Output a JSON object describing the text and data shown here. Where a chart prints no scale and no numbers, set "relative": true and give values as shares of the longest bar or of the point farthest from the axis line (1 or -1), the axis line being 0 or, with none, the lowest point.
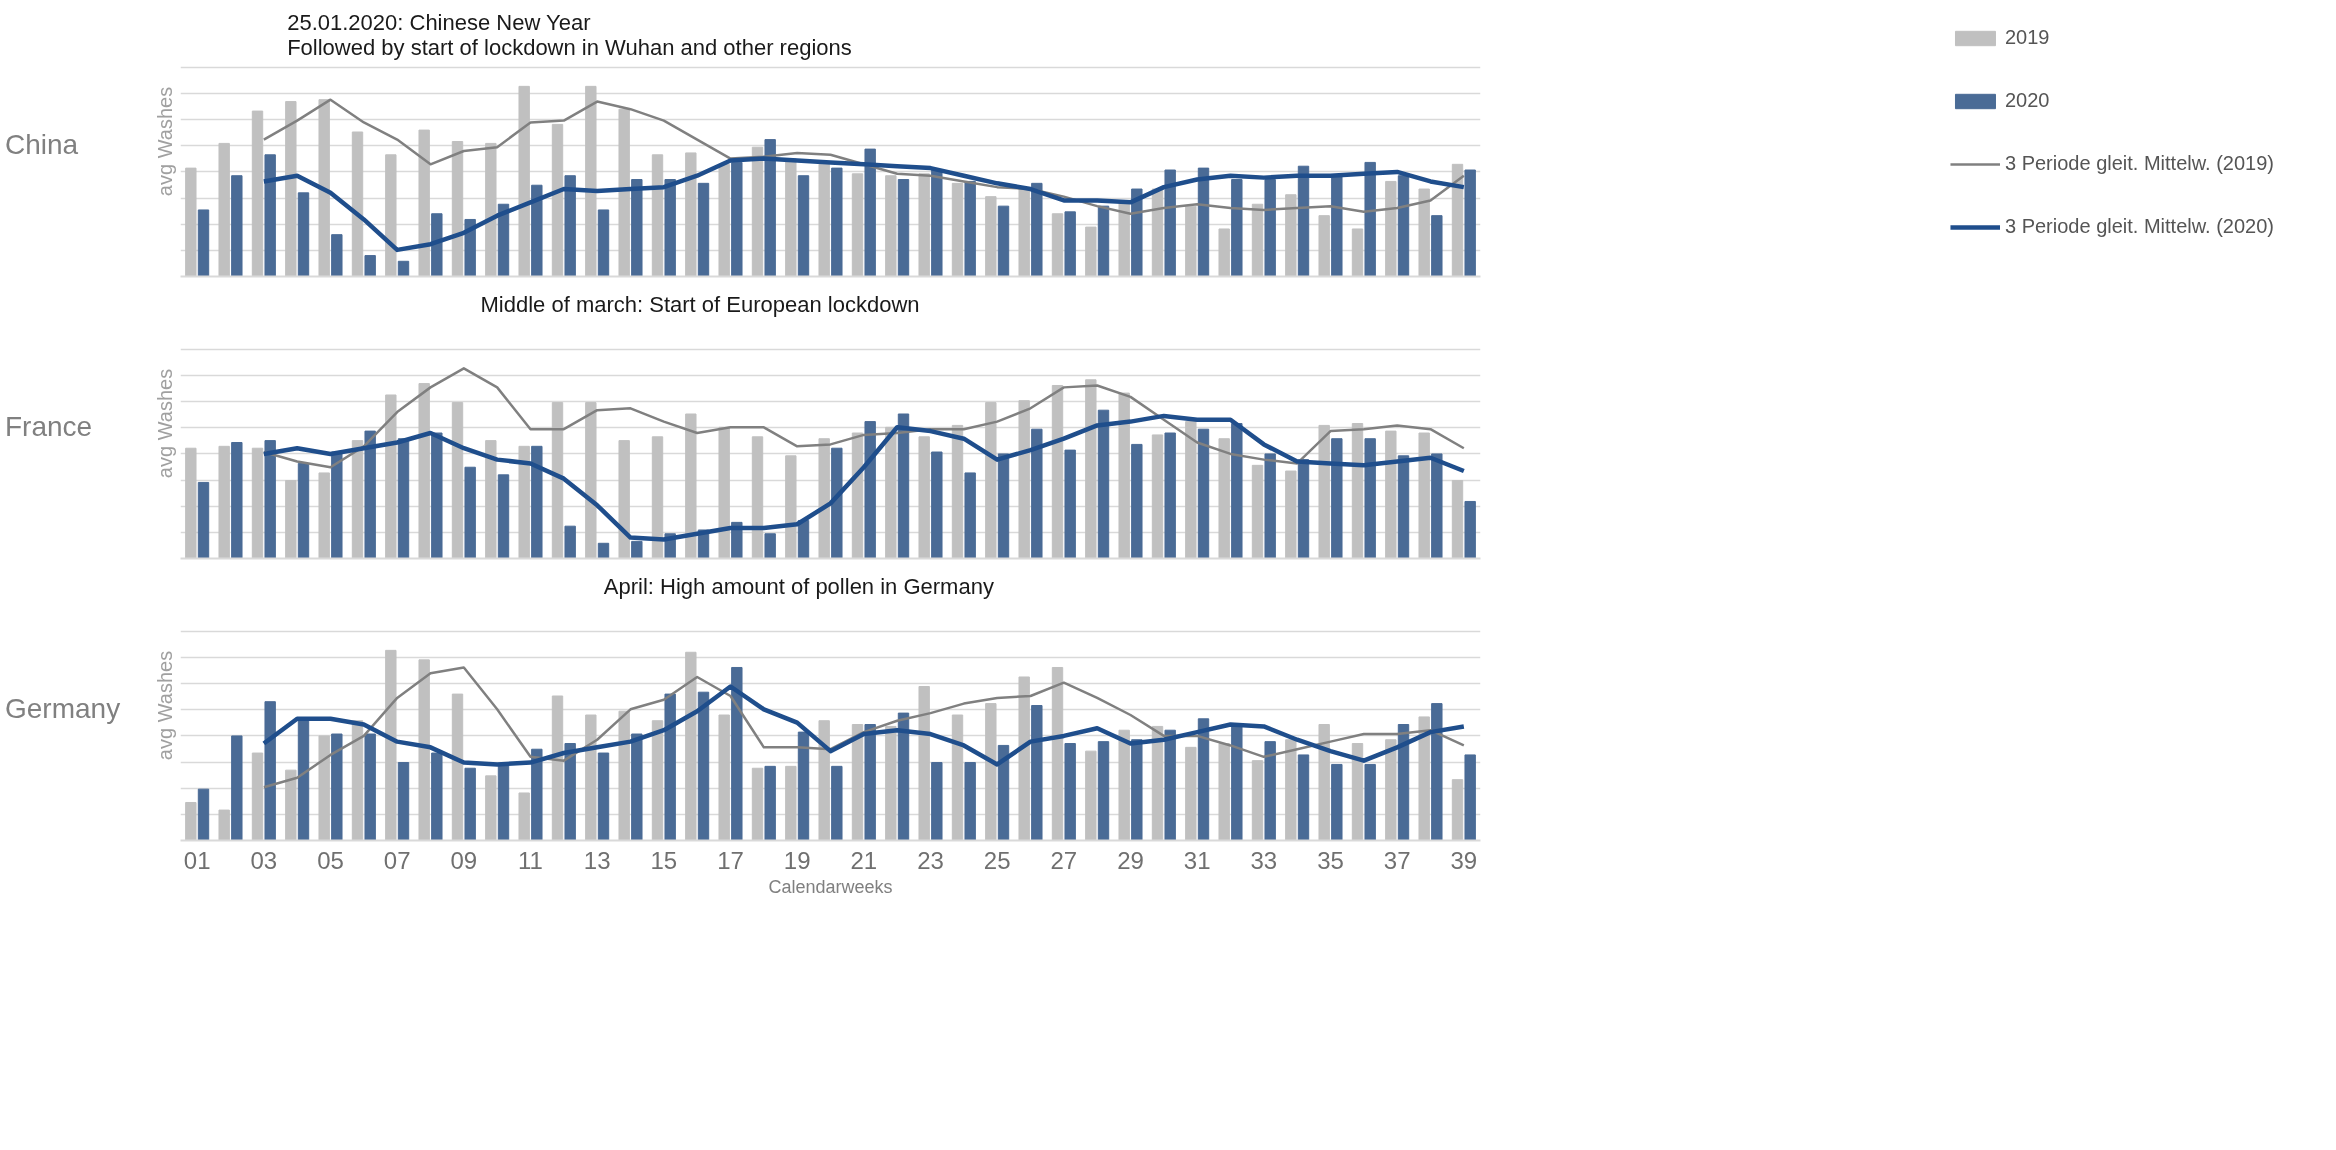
{
  "chart_data": [
    {
      "type": "bar",
      "title": "China",
      "ylabel": "avg Washes",
      "relative": true,
      "grid": "y",
      "legend": "right",
      "tick_labels": false,
      "xlim": [
        0.5,
        39.5
      ],
      "x": [
        1,
        2,
        3,
        4,
        5,
        6,
        7,
        8,
        9,
        10,
        11,
        12,
        13,
        14,
        15,
        16,
        17,
        18,
        19,
        20,
        21,
        22,
        23,
        24,
        25,
        26,
        27,
        28,
        29,
        30,
        31,
        32,
        33,
        34,
        35,
        36,
        37,
        38,
        39
      ],
      "annotations": [
        "25.01.2020: Chinese New Year",
        "Followed by start of lockdown in Wuhan and other regions"
      ],
      "series": [
        {
          "name": "2019",
          "color": "#c0c0c0",
          "values": [
            0.57,
            0.7,
            0.87,
            0.92,
            0.93,
            0.76,
            0.64,
            0.77,
            0.71,
            0.7,
            1.0,
            0.8,
            1.0,
            0.88,
            0.64,
            0.65,
            0.59,
            0.68,
            0.62,
            0.59,
            0.54,
            0.53,
            0.54,
            0.49,
            0.42,
            0.46,
            0.33,
            0.26,
            0.39,
            0.46,
            0.37,
            0.25,
            0.38,
            0.43,
            0.32,
            0.25,
            0.5,
            0.46,
            0.59
          ]
        },
        {
          "name": "2020",
          "color": "#4a6b96",
          "values": [
            0.35,
            0.53,
            0.64,
            0.44,
            0.22,
            0.11,
            0.08,
            0.33,
            0.3,
            0.38,
            0.48,
            0.53,
            0.35,
            0.51,
            0.51,
            0.49,
            0.6,
            0.72,
            0.53,
            0.57,
            0.67,
            0.51,
            0.56,
            0.5,
            0.37,
            0.49,
            0.34,
            0.37,
            0.46,
            0.56,
            0.57,
            0.51,
            0.51,
            0.58,
            0.53,
            0.6,
            0.53,
            0.32,
            0.56
          ]
        },
        {
          "name": "3 Periode gleit. Mittelw. (2019)",
          "type": "line",
          "color": "#808080",
          "values": [
            null,
            null,
            0.72,
            0.82,
            0.93,
            0.81,
            0.72,
            0.59,
            0.66,
            0.68,
            0.81,
            0.82,
            0.92,
            0.88,
            0.82,
            0.72,
            0.62,
            0.63,
            0.65,
            0.64,
            0.59,
            0.54,
            0.53,
            0.5,
            0.47,
            0.46,
            0.42,
            0.37,
            0.33,
            0.36,
            0.38,
            0.36,
            0.35,
            0.36,
            0.37,
            0.34,
            0.36,
            0.4,
            0.53
          ]
        },
        {
          "name": "3 Periode gleit. Mittelw. (2020)",
          "type": "line",
          "color": "#1f4e8c",
          "values": [
            null,
            null,
            0.5,
            0.53,
            0.44,
            0.3,
            0.14,
            0.17,
            0.23,
            0.32,
            0.39,
            0.46,
            0.45,
            0.46,
            0.47,
            0.53,
            0.61,
            0.62,
            0.61,
            0.6,
            0.59,
            0.58,
            0.57,
            0.53,
            0.49,
            0.46,
            0.4,
            0.4,
            0.39,
            0.47,
            0.51,
            0.53,
            0.52,
            0.53,
            0.53,
            0.54,
            0.55,
            0.5,
            0.47
          ]
        }
      ]
    },
    {
      "type": "bar",
      "title": "France",
      "ylabel": "avg Washes",
      "relative": true,
      "grid": "y",
      "tick_labels": false,
      "xlim": [
        0.5,
        39.5
      ],
      "x": [
        1,
        2,
        3,
        4,
        5,
        6,
        7,
        8,
        9,
        10,
        11,
        12,
        13,
        14,
        15,
        16,
        17,
        18,
        19,
        20,
        21,
        22,
        23,
        24,
        25,
        26,
        27,
        28,
        29,
        30,
        31,
        32,
        33,
        34,
        35,
        36,
        37,
        38,
        39
      ],
      "annotations": [
        "Middle of march: Start of European lockdown"
      ],
      "series": [
        {
          "color": "#c0c0c0",
          "values": [
            0.58,
            0.59,
            0.58,
            0.41,
            0.45,
            0.62,
            0.86,
            0.92,
            0.82,
            0.62,
            0.59,
            0.82,
            0.82,
            0.62,
            0.64,
            0.76,
            0.69,
            0.64,
            0.54,
            0.63,
            0.66,
            0.69,
            0.64,
            0.7,
            0.82,
            0.83,
            0.91,
            0.94,
            0.87,
            0.65,
            0.72,
            0.63,
            0.49,
            0.46,
            0.7,
            0.71,
            0.67,
            0.66,
            0.41
          ]
        },
        {
          "color": "#4a6b96",
          "values": [
            0.4,
            0.61,
            0.62,
            0.5,
            0.56,
            0.67,
            0.63,
            0.66,
            0.48,
            0.44,
            0.59,
            0.17,
            0.08,
            0.09,
            0.13,
            0.15,
            0.19,
            0.13,
            0.2,
            0.58,
            0.72,
            0.76,
            0.56,
            0.45,
            0.55,
            0.68,
            0.57,
            0.78,
            0.6,
            0.66,
            0.68,
            0.71,
            0.55,
            0.52,
            0.63,
            0.63,
            0.54,
            0.55,
            0.3
          ]
        },
        {
          "type": "line",
          "color": "#808080",
          "values": [
            null,
            null,
            0.56,
            0.51,
            0.48,
            0.59,
            0.77,
            0.9,
            1.0,
            0.9,
            0.68,
            0.68,
            0.78,
            0.79,
            0.72,
            0.66,
            0.69,
            0.69,
            0.59,
            0.6,
            0.65,
            0.66,
            0.68,
            0.68,
            0.72,
            0.79,
            0.9,
            0.91,
            0.85,
            0.73,
            0.61,
            0.55,
            0.52,
            0.5,
            0.67,
            0.68,
            0.7,
            0.68,
            0.58
          ]
        },
        {
          "type": "line",
          "color": "#1f4e8c",
          "values": [
            null,
            null,
            0.55,
            0.58,
            0.55,
            0.58,
            0.61,
            0.66,
            0.58,
            0.52,
            0.5,
            0.42,
            0.28,
            0.11,
            0.1,
            0.13,
            0.16,
            0.16,
            0.18,
            0.29,
            0.48,
            0.69,
            0.67,
            0.63,
            0.52,
            0.57,
            0.63,
            0.7,
            0.72,
            0.75,
            0.73,
            0.73,
            0.6,
            0.51,
            0.5,
            0.49,
            0.51,
            0.53,
            0.46
          ]
        }
      ]
    },
    {
      "type": "bar",
      "title": "Germany",
      "ylabel": "avg Washes",
      "xlabel": "Calendarweeks",
      "relative": true,
      "grid": "y",
      "tick_labels": "x",
      "xlim": [
        0.5,
        39.5
      ],
      "xticks": [
        {
          "value": 1,
          "label": "01"
        },
        {
          "value": 3,
          "label": "03"
        },
        {
          "value": 5,
          "label": "05"
        },
        {
          "value": 7,
          "label": "07"
        },
        {
          "value": 9,
          "label": "09"
        },
        11,
        13,
        15,
        17,
        19,
        21,
        23,
        25,
        27,
        29,
        31,
        33,
        35,
        37,
        39
      ],
      "x": [
        1,
        2,
        3,
        4,
        5,
        6,
        7,
        8,
        9,
        10,
        11,
        12,
        13,
        14,
        15,
        16,
        17,
        18,
        19,
        20,
        21,
        22,
        23,
        24,
        25,
        26,
        27,
        28,
        29,
        30,
        31,
        32,
        33,
        34,
        35,
        36,
        37,
        38,
        39
      ],
      "annotations": [
        "April: High amount of pollen in Germany"
      ],
      "series": [
        {
          "color": "#c0c0c0",
          "values": [
            0.2,
            0.16,
            0.46,
            0.37,
            0.55,
            0.63,
            1.0,
            0.95,
            0.77,
            0.34,
            0.25,
            0.76,
            0.66,
            0.68,
            0.63,
            0.99,
            0.66,
            0.38,
            0.39,
            0.63,
            0.61,
            0.6,
            0.81,
            0.66,
            0.72,
            0.86,
            0.91,
            0.47,
            0.58,
            0.6,
            0.49,
            0.51,
            0.42,
            0.53,
            0.61,
            0.51,
            0.53,
            0.65,
            0.32
          ]
        },
        {
          "color": "#4a6b96",
          "values": [
            0.27,
            0.55,
            0.73,
            0.63,
            0.56,
            0.56,
            0.41,
            0.46,
            0.38,
            0.4,
            0.48,
            0.51,
            0.46,
            0.56,
            0.77,
            0.78,
            0.91,
            0.39,
            0.57,
            0.39,
            0.61,
            0.67,
            0.41,
            0.41,
            0.5,
            0.71,
            0.51,
            0.52,
            0.53,
            0.58,
            0.64,
            0.61,
            0.52,
            0.45,
            0.4,
            0.4,
            0.61,
            0.72,
            0.45
          ]
        },
        {
          "type": "line",
          "color": "#808080",
          "values": [
            null,
            null,
            0.28,
            0.33,
            0.45,
            0.55,
            0.75,
            0.88,
            0.91,
            0.69,
            0.44,
            0.42,
            0.53,
            0.69,
            0.74,
            0.86,
            0.76,
            0.49,
            0.49,
            0.48,
            0.57,
            0.63,
            0.67,
            0.72,
            0.75,
            0.76,
            0.83,
            0.75,
            0.66,
            0.55,
            0.55,
            0.5,
            0.44,
            0.48,
            0.52,
            0.56,
            0.56,
            0.58,
            0.5
          ]
        },
        {
          "type": "line",
          "color": "#1f4e8c",
          "values": [
            null,
            null,
            0.51,
            0.64,
            0.64,
            0.61,
            0.52,
            0.49,
            0.41,
            0.4,
            0.41,
            0.46,
            0.49,
            0.52,
            0.58,
            0.68,
            0.81,
            0.69,
            0.62,
            0.47,
            0.56,
            0.58,
            0.56,
            0.5,
            0.4,
            0.52,
            0.55,
            0.59,
            0.51,
            0.53,
            0.57,
            0.61,
            0.6,
            0.53,
            0.47,
            0.42,
            0.49,
            0.57,
            0.6
          ]
        }
      ]
    }
  ]
}
